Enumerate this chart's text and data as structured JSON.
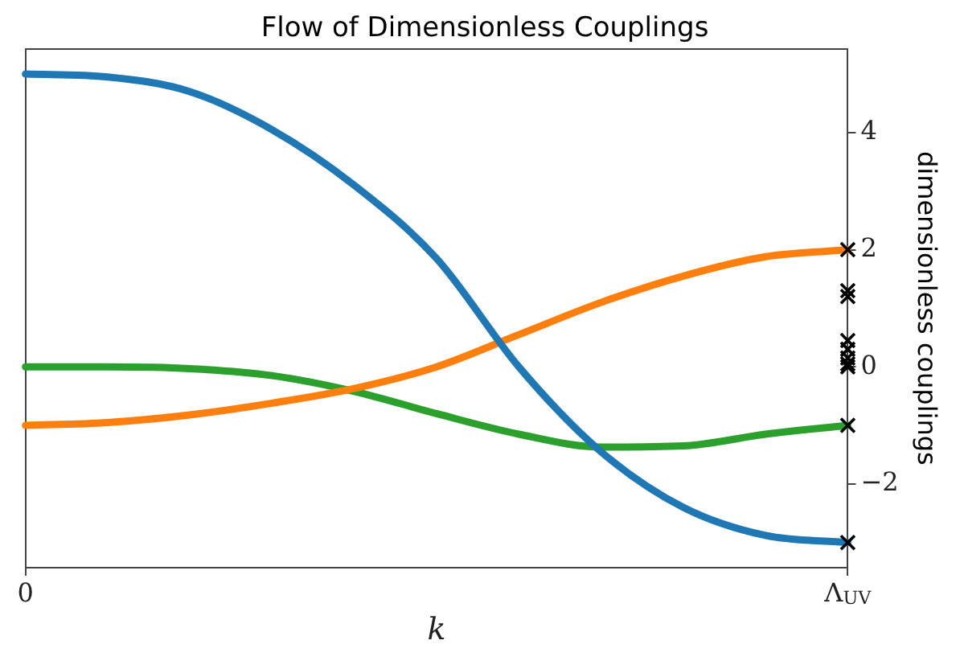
{
  "chart_data": {
    "type": "line",
    "title": "Flow of Dimensionless Couplings",
    "xlabel": "k",
    "ylabel": "dimensionless couplings",
    "categories": [
      "0",
      null,
      null,
      null,
      null,
      null,
      null,
      null,
      null,
      null,
      "Λ$_{UV}$"
    ],
    "ylim": [
      -3.43,
      5.43
    ],
    "yticks": [
      {
        "value": -2,
        "label": "−2"
      },
      0,
      2,
      4
    ],
    "grid": false,
    "legend": false,
    "line_style": "solid",
    "marker": "none",
    "series": [
      {
        "color": "#1f77b4",
        "values": [
          5.0,
          4.95,
          4.7,
          4.05,
          3.1,
          1.85,
          0.0,
          -1.45,
          -2.4,
          -2.88,
          -3.0
        ]
      },
      {
        "color": "#ff7f0e",
        "values": [
          -1.0,
          -0.95,
          -0.82,
          -0.62,
          -0.37,
          0.0,
          0.55,
          1.1,
          1.55,
          1.88,
          2.0
        ]
      },
      {
        "color": "#2ca02c",
        "values": [
          0,
          0,
          -0.03,
          -0.15,
          -0.42,
          -0.8,
          -1.15,
          -1.37,
          -1.35,
          -1.15,
          -1.0
        ]
      },
      {
        "type": "scatter",
        "marker": "cross",
        "color": "#000000",
        "x": [
          "Λ$_{UV}$",
          "Λ$_{UV}$",
          "Λ$_{UV}$",
          "Λ$_{UV}$",
          "Λ$_{UV}$",
          "Λ$_{UV}$",
          "Λ$_{UV}$",
          "Λ$_{UV}$",
          "Λ$_{UV}$",
          "Λ$_{UV}$"
        ],
        "values": [
          2,
          1.3,
          1.2,
          0.45,
          0.3,
          0.15,
          0.05,
          0,
          -1,
          -3
        ]
      }
    ]
  }
}
